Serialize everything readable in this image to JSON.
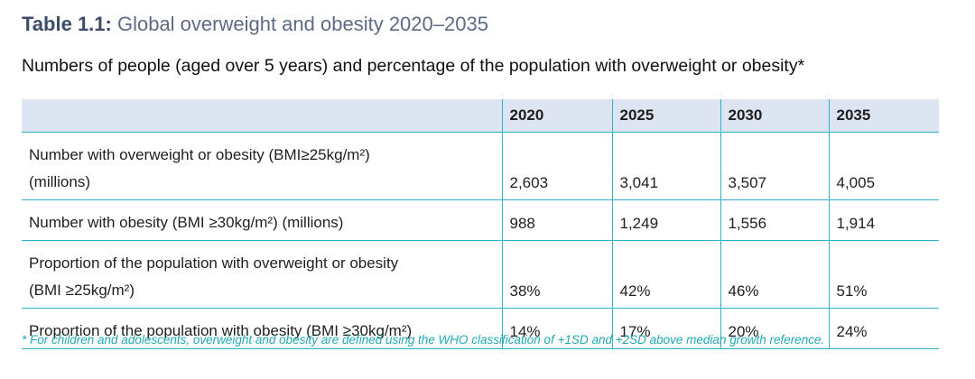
{
  "title": {
    "label": "Table 1.1:",
    "text": " Global overweight and obesity 2020–2035"
  },
  "subtitle": "Numbers of people (aged over 5 years) and percentage of the population with overweight or obesity*",
  "table": {
    "columns": [
      "",
      "2020",
      "2025",
      "2030",
      "2035"
    ],
    "rows": [
      {
        "label_line1": "Number with overweight or obesity (BMI≥25kg/m²)",
        "label_line2": "(millions)",
        "values": [
          "2,603",
          "3,041",
          "3,507",
          "4,005"
        ]
      },
      {
        "label_line1": "Number with obesity (BMI ≥30kg/m²) (millions)",
        "label_line2": "",
        "values": [
          "988",
          "1,249",
          "1,556",
          "1,914"
        ]
      },
      {
        "label_line1": "Proportion of the population with overweight or obesity",
        "label_line2": "(BMI ≥25kg/m²)",
        "values": [
          "38%",
          "42%",
          "46%",
          "51%"
        ]
      },
      {
        "label_line1": "Proportion of the population with obesity (BMI ≥30kg/m²)",
        "label_line2": "",
        "values": [
          "14%",
          "17%",
          "20%",
          "24%"
        ]
      }
    ]
  },
  "footnote": "* For children and adolescents, overweight and obesity are defined using the WHO classification of +1SD and +2SD above median growth reference.",
  "colors": {
    "title": "#3d4b6b",
    "header_bg": "#dde4f2",
    "rule": "#2bb3c0",
    "footnote": "#22a9b8"
  }
}
